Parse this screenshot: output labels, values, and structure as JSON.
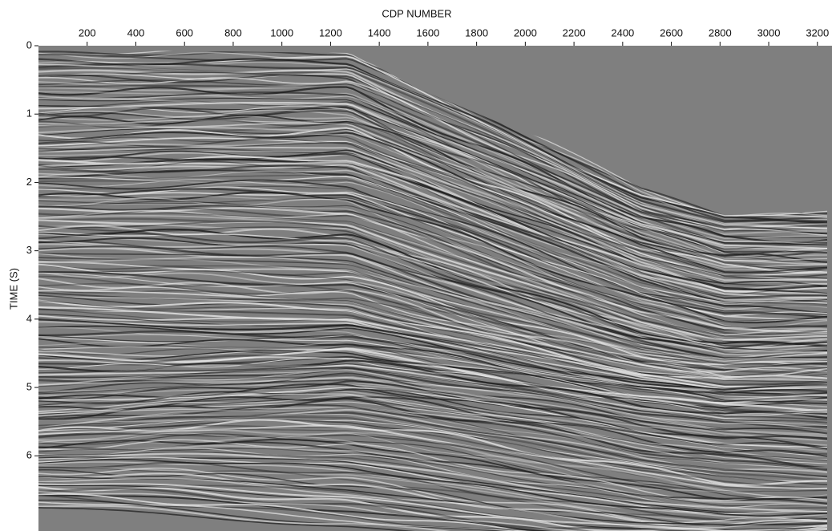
{
  "chart_data": {
    "type": "seismic",
    "x_label": "CDP NUMBER",
    "y_label": "TIME (S)",
    "xlim": [
      0,
      3260
    ],
    "ylim": [
      0,
      7.1
    ],
    "y_inverted": true,
    "xticks": [
      200,
      400,
      600,
      800,
      1000,
      1200,
      1400,
      1600,
      1800,
      2000,
      2200,
      2400,
      2600,
      2800,
      3000,
      3200
    ],
    "yticks": [
      0,
      1,
      2,
      3,
      4,
      5,
      6
    ]
  }
}
